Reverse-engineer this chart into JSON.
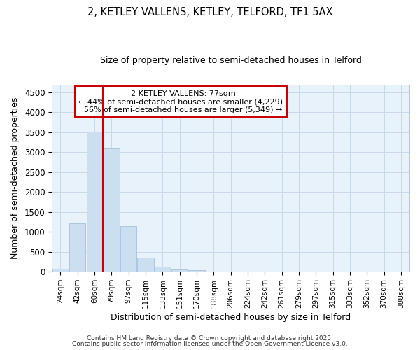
{
  "title1": "2, KETLEY VALLENS, KETLEY, TELFORD, TF1 5AX",
  "title2": "Size of property relative to semi-detached houses in Telford",
  "xlabel": "Distribution of semi-detached houses by size in Telford",
  "ylabel": "Number of semi-detached properties",
  "bar_labels": [
    "24sqm",
    "42sqm",
    "60sqm",
    "79sqm",
    "97sqm",
    "115sqm",
    "133sqm",
    "151sqm",
    "170sqm",
    "188sqm",
    "206sqm",
    "224sqm",
    "242sqm",
    "261sqm",
    "279sqm",
    "297sqm",
    "315sqm",
    "333sqm",
    "352sqm",
    "370sqm",
    "388sqm"
  ],
  "bar_values": [
    80,
    1220,
    3520,
    3100,
    1150,
    350,
    120,
    50,
    30,
    5,
    2,
    1,
    0,
    0,
    0,
    0,
    0,
    0,
    0,
    0,
    0
  ],
  "bar_color": "#ccdff0",
  "bar_edge_color": "#aac8e0",
  "property_label": "2 KETLEY VALLENS: 77sqm",
  "pct_smaller": 44,
  "n_smaller": 4229,
  "pct_larger": 56,
  "n_larger": 5349,
  "vline_color": "#cc0000",
  "annotation_box_edge_color": "#cc0000",
  "ylim": [
    0,
    4700
  ],
  "yticks": [
    0,
    500,
    1000,
    1500,
    2000,
    2500,
    3000,
    3500,
    4000,
    4500
  ],
  "grid_color": "#c8d8e8",
  "plot_bg_color": "#e8f2fa",
  "fig_bg_color": "#ffffff",
  "footnote1": "Contains HM Land Registry data © Crown copyright and database right 2025.",
  "footnote2": "Contains public sector information licensed under the Open Government Licence v3.0."
}
